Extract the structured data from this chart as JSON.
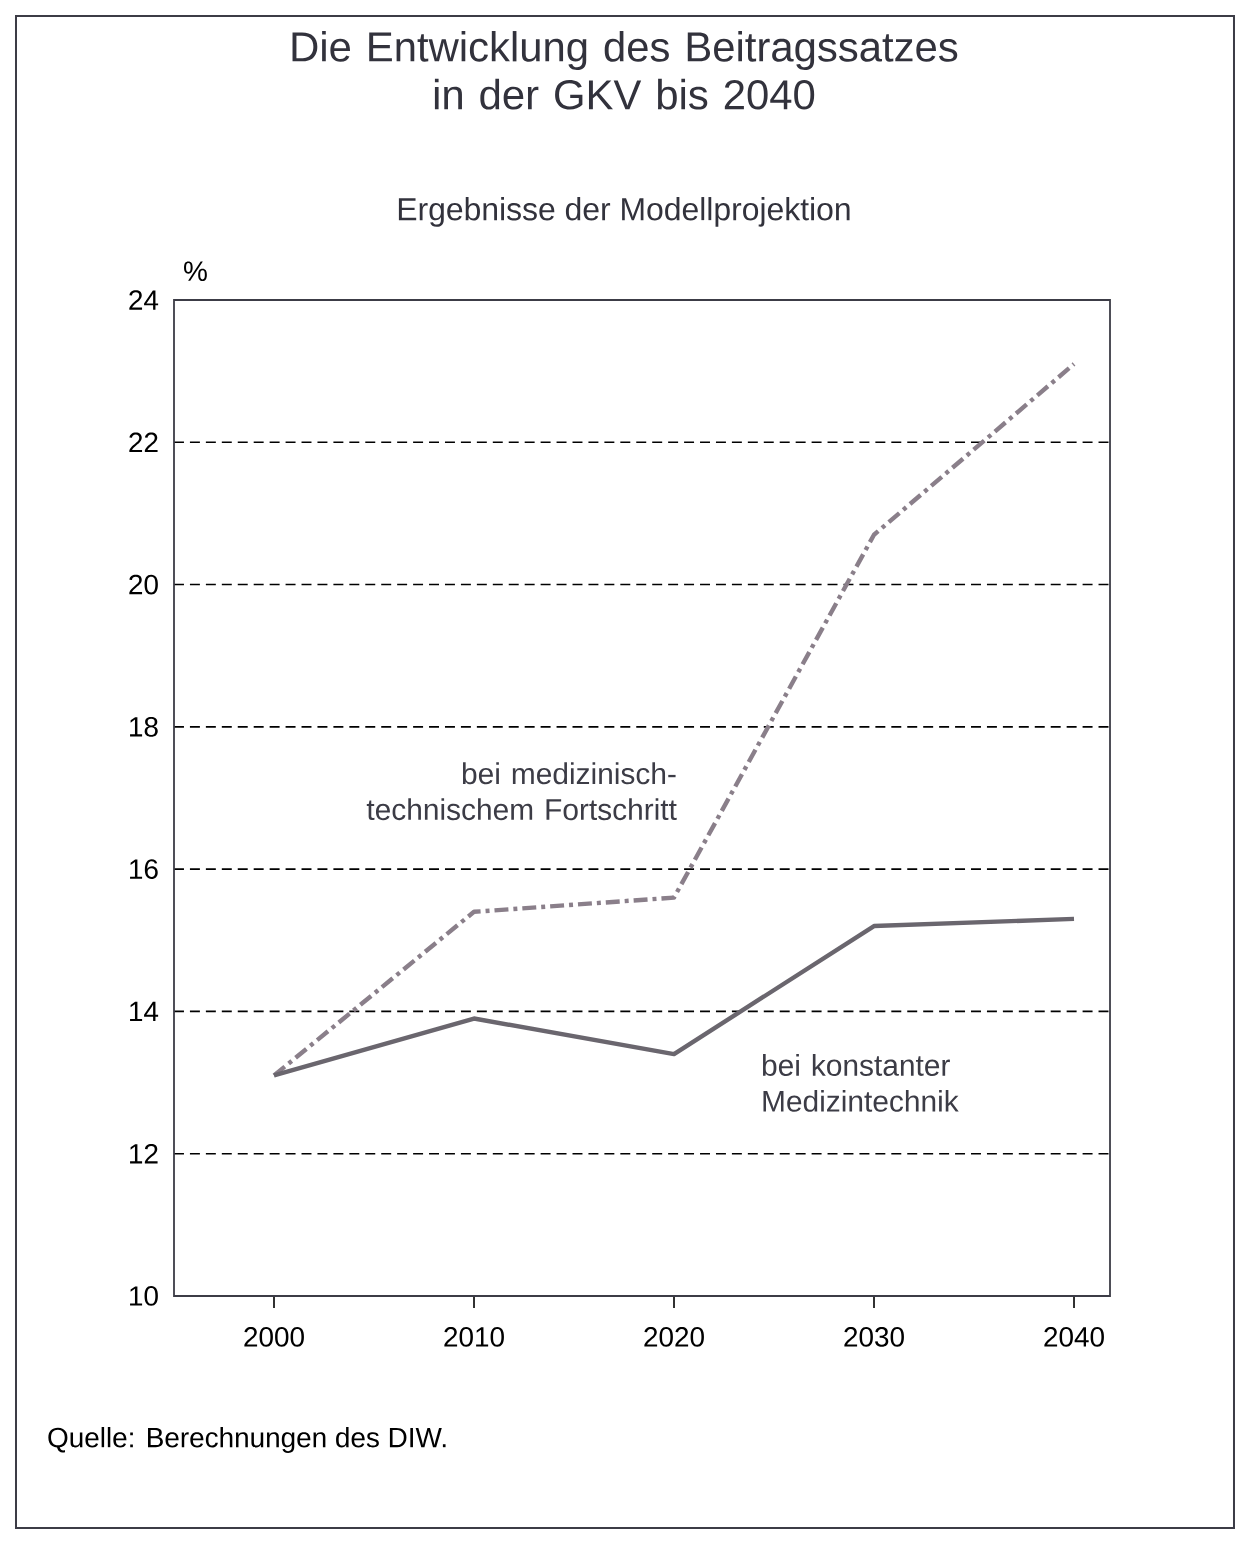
{
  "chart_data": {
    "type": "line",
    "title": "Die Entwicklung des Beitragssatzes in der GKV bis 2040",
    "subtitle": "Ergebnisse der Modellprojektion",
    "ylabel": "%",
    "categories": [
      "2000",
      "2010",
      "2020",
      "2030",
      "2040"
    ],
    "series": [
      {
        "name": "bei medizinisch-technischem Fortschritt",
        "color": "#8a7f8a",
        "line_style": "dashed",
        "values": [
          13.1,
          15.4,
          15.6,
          20.7,
          23.1
        ]
      },
      {
        "name": "bei konstanter Medizintechnik",
        "color": "#6a666e",
        "line_style": "solid",
        "values": [
          13.1,
          13.9,
          13.4,
          15.2,
          15.3
        ]
      }
    ],
    "ylim": [
      10,
      24
    ],
    "yticks": [
      10,
      12,
      14,
      16,
      18,
      20,
      22,
      24
    ],
    "grid": "y",
    "annotations": [
      "Quelle: Berechnungen des DIW."
    ]
  }
}
